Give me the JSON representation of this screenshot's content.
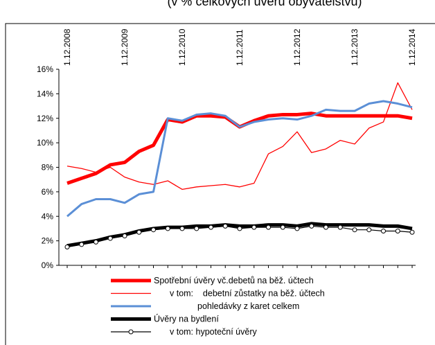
{
  "chart_data": {
    "type": "line",
    "title": "(v % celkových úvěrů obyvatelstvu)",
    "categories": [
      "1.12.2008",
      null,
      null,
      null,
      "1.12.2009",
      null,
      null,
      null,
      "1.12.2010",
      null,
      null,
      null,
      "1.12.2011",
      null,
      null,
      null,
      "1.12.2012",
      null,
      null,
      null,
      "1.12.2013",
      null,
      null,
      null,
      "1.12.2014"
    ],
    "ylim": [
      0,
      16
    ],
    "yticks": [
      {
        "value": 0,
        "label": "0%"
      },
      {
        "value": 2,
        "label": "2%"
      },
      {
        "value": 4,
        "label": "4%"
      },
      {
        "value": 6,
        "label": "6%"
      },
      {
        "value": 8,
        "label": "8%"
      },
      {
        "value": 10,
        "label": "10%"
      },
      {
        "value": 12,
        "label": "12%"
      },
      {
        "value": 14,
        "label": "14%"
      },
      {
        "value": 16,
        "label": "16%"
      }
    ],
    "series": [
      {
        "name": "Spotřební úvěry vč.debetů na běž. účtech",
        "color": "#ff0000",
        "width": 5,
        "markers": false,
        "values": [
          6.7,
          7.1,
          7.5,
          8.2,
          8.4,
          9.3,
          9.8,
          11.9,
          11.7,
          12.2,
          12.2,
          12.1,
          11.3,
          11.8,
          12.2,
          12.3,
          12.3,
          12.4,
          12.2,
          12.2,
          12.2,
          12.2,
          12.2,
          12.2,
          12.0
        ]
      },
      {
        "name": "v tom:    debetní zůstatky na běž. účtech",
        "color": "#ff0000",
        "width": 1.3,
        "markers": false,
        "values": [
          8.1,
          7.9,
          7.6,
          8.0,
          7.2,
          6.8,
          6.6,
          6.9,
          6.2,
          6.4,
          6.5,
          6.6,
          6.4,
          6.7,
          9.1,
          9.7,
          10.9,
          9.2,
          9.5,
          10.2,
          9.9,
          11.2,
          11.7,
          14.9,
          12.7
        ]
      },
      {
        "name": "pohledávky z karet celkem",
        "color": "#5b8fd6",
        "width": 3,
        "markers": false,
        "values": [
          4.0,
          5.0,
          5.4,
          5.4,
          5.1,
          5.8,
          6.0,
          12.0,
          11.8,
          12.3,
          12.4,
          12.2,
          11.3,
          11.7,
          11.9,
          12.0,
          11.9,
          12.2,
          12.7,
          12.6,
          12.6,
          13.2,
          13.4,
          13.2,
          12.9
        ]
      },
      {
        "name": "Úvěry na bydlení",
        "color": "#000000",
        "width": 5,
        "markers": false,
        "values": [
          1.6,
          1.8,
          2.0,
          2.3,
          2.5,
          2.8,
          3.0,
          3.1,
          3.1,
          3.2,
          3.2,
          3.3,
          3.2,
          3.2,
          3.3,
          3.3,
          3.2,
          3.4,
          3.3,
          3.3,
          3.3,
          3.3,
          3.2,
          3.2,
          3.0
        ]
      },
      {
        "name": "v tom: hypoteční úvěry",
        "color": "#000000",
        "width": 1.2,
        "markers": true,
        "values": [
          1.5,
          1.7,
          1.9,
          2.2,
          2.4,
          2.7,
          2.9,
          3.0,
          3.0,
          3.0,
          3.1,
          3.2,
          3.0,
          3.1,
          3.1,
          3.1,
          3.0,
          3.2,
          3.1,
          3.1,
          2.9,
          2.9,
          2.8,
          2.8,
          2.7
        ]
      }
    ]
  }
}
